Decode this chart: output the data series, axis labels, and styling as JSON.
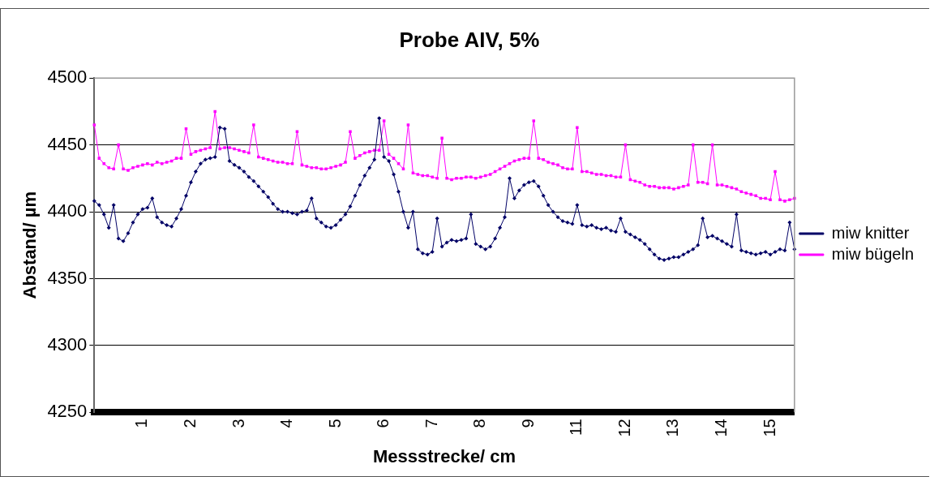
{
  "chart_data": {
    "type": "line",
    "title": "Probe AIV, 5%",
    "xlabel": "Messstrecke/ cm",
    "ylabel": "Abstand/ µm",
    "categories": [
      null,
      null,
      null,
      null,
      null,
      null,
      null,
      null,
      null,
      null,
      "1",
      null,
      null,
      null,
      null,
      null,
      null,
      null,
      null,
      null,
      "2",
      null,
      null,
      null,
      null,
      null,
      null,
      null,
      null,
      null,
      "3",
      null,
      null,
      null,
      null,
      null,
      null,
      null,
      null,
      null,
      "4",
      null,
      null,
      null,
      null,
      null,
      null,
      null,
      null,
      null,
      "5",
      null,
      null,
      null,
      null,
      null,
      null,
      null,
      null,
      null,
      "6",
      null,
      null,
      null,
      null,
      null,
      null,
      null,
      null,
      null,
      "7",
      null,
      null,
      null,
      null,
      null,
      null,
      null,
      null,
      null,
      "8",
      null,
      null,
      null,
      null,
      null,
      null,
      null,
      null,
      null,
      "9",
      null,
      null,
      null,
      null,
      null,
      null,
      null,
      null,
      null,
      "11",
      null,
      null,
      null,
      null,
      null,
      null,
      null,
      null,
      null,
      "12",
      null,
      null,
      null,
      null,
      null,
      null,
      null,
      null,
      null,
      "13",
      null,
      null,
      null,
      null,
      null,
      null,
      null,
      null,
      null,
      "14",
      null,
      null,
      null,
      null,
      null,
      null,
      null,
      null,
      null,
      "15",
      null,
      null,
      null,
      null,
      null
    ],
    "series": [
      {
        "name": "miw knitter",
        "color": "#000066",
        "marker": "diamond",
        "values": [
          4408,
          4405,
          4398,
          4388,
          4405,
          4380,
          4378,
          4384,
          4392,
          4398,
          4402,
          4403,
          4410,
          4396,
          4392,
          4390,
          4389,
          4395,
          4402,
          4412,
          4422,
          4430,
          4436,
          4439,
          4440,
          4441,
          4463,
          4462,
          4438,
          4435,
          4433,
          4430,
          4426,
          4423,
          4419,
          4415,
          4411,
          4406,
          4402,
          4400,
          4400,
          4399,
          4398,
          4400,
          4401,
          4410,
          4395,
          4392,
          4389,
          4388,
          4390,
          4394,
          4398,
          4404,
          4412,
          4420,
          4427,
          4433,
          4439,
          4470,
          4441,
          4438,
          4428,
          4415,
          4400,
          4388,
          4400,
          4372,
          4369,
          4368,
          4370,
          4395,
          4374,
          4377,
          4379,
          4378,
          4379,
          4380,
          4398,
          4376,
          4374,
          4372,
          4374,
          4380,
          4388,
          4396,
          4425,
          4410,
          4416,
          4420,
          4422,
          4423,
          4419,
          4412,
          4405,
          4400,
          4396,
          4393,
          4392,
          4391,
          4405,
          4390,
          4389,
          4390,
          4388,
          4387,
          4388,
          4386,
          4385,
          4395,
          4385,
          4383,
          4381,
          4379,
          4376,
          4372,
          4368,
          4365,
          4364,
          4365,
          4366,
          4366,
          4368,
          4370,
          4372,
          4375,
          4395,
          4381,
          4382,
          4380,
          4378,
          4376,
          4374,
          4398,
          4371,
          4370,
          4369,
          4368,
          4369,
          4370,
          4368,
          4370,
          4372,
          4371,
          4392,
          4372
        ]
      },
      {
        "name": "miw bügeln",
        "color": "#ff00ff",
        "marker": "square",
        "values": [
          4465,
          4440,
          4436,
          4433,
          4432,
          4450,
          4432,
          4431,
          4433,
          4434,
          4435,
          4436,
          4435,
          4437,
          4436,
          4437,
          4438,
          4440,
          4440,
          4462,
          4443,
          4445,
          4446,
          4447,
          4448,
          4475,
          4447,
          4448,
          4448,
          4447,
          4446,
          4445,
          4444,
          4465,
          4441,
          4440,
          4439,
          4438,
          4437,
          4437,
          4436,
          4436,
          4460,
          4435,
          4434,
          4433,
          4433,
          4432,
          4432,
          4433,
          4434,
          4435,
          4437,
          4460,
          4440,
          4442,
          4444,
          4445,
          4446,
          4446,
          4468,
          4443,
          4440,
          4436,
          4432,
          4465,
          4429,
          4428,
          4427,
          4427,
          4426,
          4425,
          4455,
          4425,
          4424,
          4425,
          4425,
          4426,
          4426,
          4425,
          4426,
          4427,
          4428,
          4430,
          4432,
          4434,
          4436,
          4438,
          4439,
          4440,
          4440,
          4468,
          4440,
          4439,
          4437,
          4436,
          4435,
          4433,
          4432,
          4432,
          4463,
          4430,
          4430,
          4429,
          4428,
          4428,
          4427,
          4427,
          4426,
          4426,
          4450,
          4424,
          4423,
          4422,
          4420,
          4419,
          4419,
          4418,
          4418,
          4418,
          4417,
          4418,
          4419,
          4420,
          4450,
          4422,
          4422,
          4421,
          4450,
          4420,
          4420,
          4419,
          4418,
          4417,
          4415,
          4414,
          4413,
          4412,
          4410,
          4410,
          4409,
          4430,
          4409,
          4408,
          4409,
          4410
        ]
      }
    ],
    "ylim": [
      4250,
      4500
    ],
    "yticks": [
      4250,
      4300,
      4350,
      4400,
      4450,
      4500
    ],
    "grid": "y",
    "legend": "right",
    "line_style": "solid"
  }
}
